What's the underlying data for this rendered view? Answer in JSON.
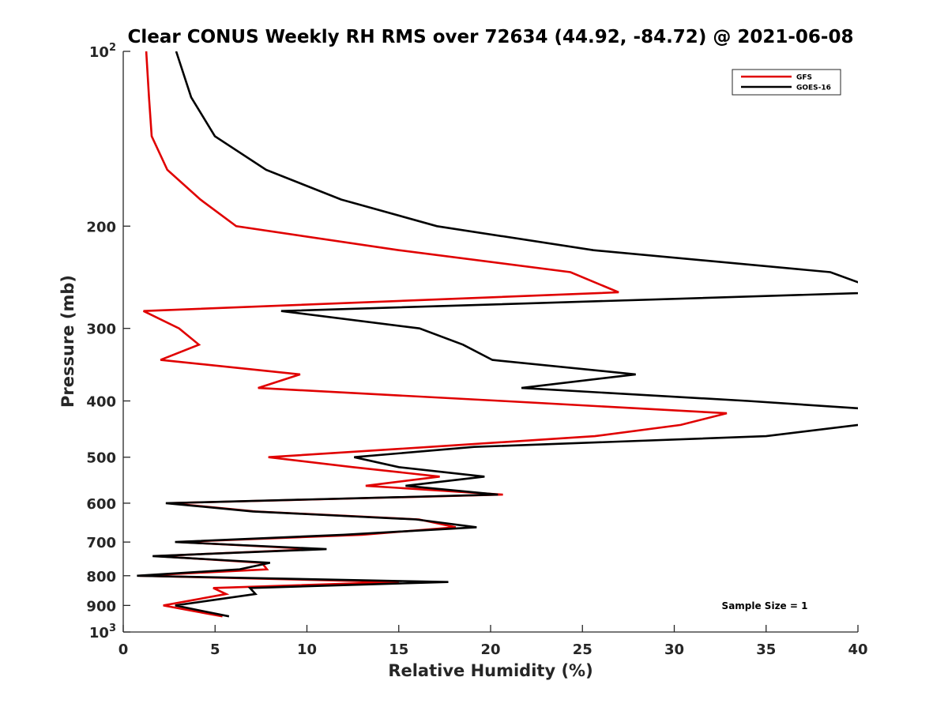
{
  "chart_data": {
    "type": "line",
    "title": "Clear CONUS Weekly RH RMS over 72634 (44.92, -84.72) @ 2021-06-08",
    "xlabel": "Relative Humidity (%)",
    "ylabel": "Pressure (mb)",
    "xlim": [
      0,
      40
    ],
    "ylim": [
      1000,
      100
    ],
    "yscale": "log",
    "y_inverted": true,
    "grid": false,
    "legend_position": "top-right",
    "x_ticks": [
      0,
      5,
      10,
      15,
      20,
      25,
      30,
      35,
      40
    ],
    "x_tick_labels": [
      "0",
      "5",
      "10",
      "15",
      "20",
      "25",
      "30",
      "35",
      "40"
    ],
    "y_ticks": [
      100,
      200,
      300,
      400,
      500,
      600,
      700,
      800,
      900,
      1000
    ],
    "y_tick_labels": [
      {
        "base": "10",
        "exp": "2"
      },
      {
        "base": "200",
        "exp": ""
      },
      {
        "base": "300",
        "exp": ""
      },
      {
        "base": "400",
        "exp": ""
      },
      {
        "base": "500",
        "exp": ""
      },
      {
        "base": "600",
        "exp": ""
      },
      {
        "base": "700",
        "exp": ""
      },
      {
        "base": "800",
        "exp": ""
      },
      {
        "base": "900",
        "exp": ""
      },
      {
        "base": "10",
        "exp": "3"
      }
    ],
    "pressure_levels": [
      100,
      120,
      140,
      160,
      180,
      200,
      220,
      240,
      260,
      280,
      300,
      320,
      340,
      360,
      380,
      400,
      420,
      440,
      460,
      480,
      500,
      520,
      540,
      560,
      580,
      600,
      620,
      640,
      660,
      680,
      700,
      720,
      740,
      760,
      780,
      800,
      820,
      840,
      860,
      880,
      900,
      920,
      940
    ],
    "series": [
      {
        "name": "GFS",
        "color": "#e00000",
        "values": [
          1.25,
          1.4,
          1.55,
          2.4,
          4.2,
          6.15,
          15.0,
          24.35,
          26.97,
          1.1,
          3.04,
          4.12,
          2.03,
          9.63,
          7.34,
          20.6,
          32.86,
          30.35,
          25.68,
          16.7,
          7.9,
          12.5,
          17.23,
          13.2,
          20.67,
          2.5,
          7.2,
          16.1,
          18.1,
          13.0,
          3.0,
          10.5,
          1.8,
          7.55,
          7.83,
          0.9,
          15.0,
          4.9,
          5.6,
          3.9,
          2.18,
          3.8,
          5.4
        ]
      },
      {
        "name": "GOES-16",
        "color": "#000000",
        "values": [
          2.88,
          3.7,
          4.99,
          7.78,
          11.87,
          17.08,
          25.6,
          38.5,
          41.5,
          8.6,
          16.13,
          18.5,
          20.1,
          27.9,
          21.68,
          34.0,
          44.0,
          40.0,
          35.0,
          19.1,
          12.57,
          15.0,
          19.67,
          15.37,
          20.4,
          2.32,
          7.05,
          15.94,
          19.24,
          12.0,
          2.82,
          11.07,
          1.6,
          7.99,
          6.34,
          0.75,
          17.7,
          6.9,
          7.2,
          5.0,
          2.83,
          4.3,
          5.76
        ]
      }
    ],
    "annotations": [
      "Sample Size = 1"
    ]
  }
}
